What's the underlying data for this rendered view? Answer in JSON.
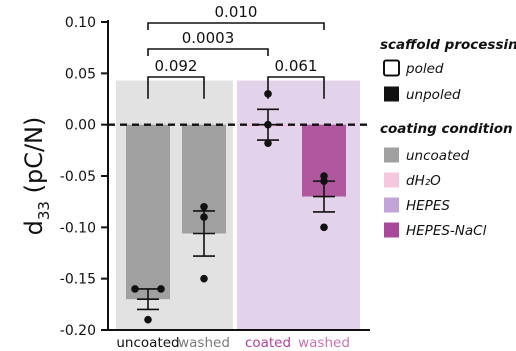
{
  "chart_data": {
    "type": "bar",
    "ylabel_main": "d",
    "ylabel_sub": "33",
    "ylabel_unit": "(pC/N)",
    "ylim": [
      -0.2,
      0.1
    ],
    "yticks": [
      "0.10",
      "0.05",
      "0.00",
      "-0.05",
      "-0.10",
      "-0.15",
      "-0.20"
    ],
    "ytick_values": [
      0.1,
      0.05,
      0.0,
      -0.05,
      -0.1,
      -0.15,
      -0.2
    ],
    "categories": [
      "uncoated",
      "washed",
      "coated",
      "washed"
    ],
    "category_colors": [
      "#111111",
      "#7a7a7a",
      "#b0409a",
      "#c774b5"
    ],
    "bars": [
      {
        "category": "uncoated",
        "mean": -0.17,
        "err_low": -0.18,
        "err_high": -0.16,
        "points": [
          -0.16,
          -0.16,
          -0.19
        ],
        "color": "#a0a0a0"
      },
      {
        "category": "washed",
        "mean": -0.106,
        "err_low": -0.128,
        "err_high": -0.084,
        "points": [
          -0.08,
          -0.09,
          -0.15
        ],
        "color": "#a0a0a0"
      },
      {
        "category": "coated",
        "mean": 0.0,
        "err_low": -0.015,
        "err_high": 0.015,
        "points": [
          0.03,
          0.0,
          -0.018
        ],
        "color": "#f2c4e0"
      },
      {
        "category": "washed",
        "mean": -0.07,
        "err_low": -0.085,
        "err_high": -0.055,
        "points": [
          -0.05,
          -0.055,
          -0.1
        ],
        "color": "#b0589e"
      }
    ],
    "background_panels": [
      {
        "from": 0,
        "to": 1,
        "color": "#e2e2e2"
      },
      {
        "from": 2,
        "to": 3,
        "color": "#e2d2ea"
      }
    ],
    "reference_line": 0.0,
    "comparisons": [
      {
        "a": 0,
        "b": 1,
        "label": "0.092",
        "level": 1
      },
      {
        "a": 2,
        "b": 3,
        "label": "0.061",
        "level": 1
      },
      {
        "a": 0,
        "b": 2,
        "label": "0.0003",
        "level": 2
      },
      {
        "a": 0,
        "b": 3,
        "label": "0.010",
        "level": 3
      }
    ],
    "legend": {
      "placement": "right",
      "groups": [
        {
          "title": "scaffold processing",
          "items": [
            {
              "label": "poled",
              "style": "outline",
              "color": "#111111"
            },
            {
              "label": "unpoled",
              "style": "filled",
              "color": "#111111"
            }
          ]
        },
        {
          "title": "coating condition",
          "items": [
            {
              "label": "uncoated",
              "style": "filled",
              "color": "#a0a0a0"
            },
            {
              "label": "dH₂O",
              "style": "filled",
              "color": "#f6c8e0"
            },
            {
              "label": "HEPES",
              "style": "filled",
              "color": "#c3a4d6"
            },
            {
              "label": "HEPES-NaCl",
              "style": "filled",
              "color": "#a8489a"
            }
          ]
        }
      ]
    }
  }
}
